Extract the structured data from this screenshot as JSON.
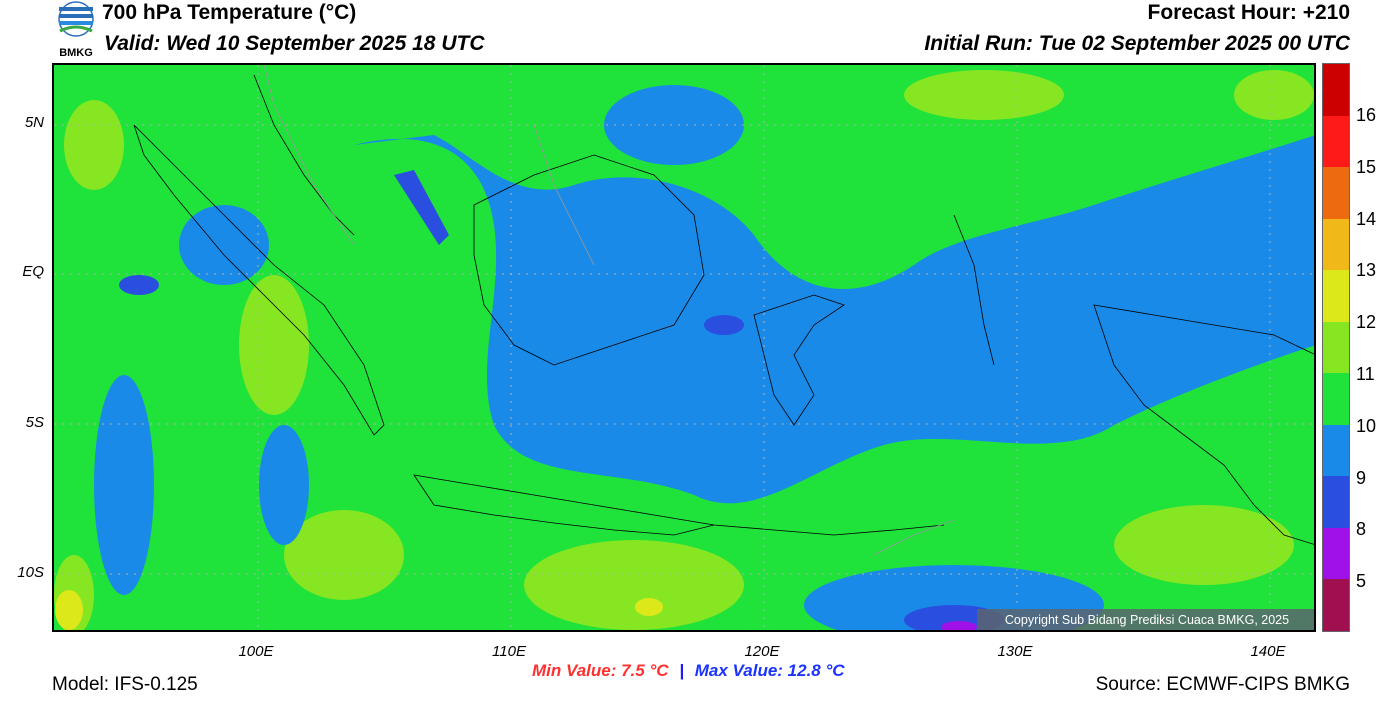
{
  "header": {
    "title": "700 hPa Temperature (°C)",
    "valid": "Valid: Wed 10 September 2025 18 UTC",
    "forecast_hour": "Forecast Hour: +210",
    "initial_run": "Initial Run: Tue 02 September 2025 00 UTC"
  },
  "logo": {
    "text": "BMKG"
  },
  "map": {
    "region": "Indonesia",
    "lat_labels": [
      "5N",
      "EQ",
      "5S",
      "10S"
    ],
    "lon_labels": [
      "100E",
      "110E",
      "120E",
      "130E",
      "140E"
    ],
    "copyright": "Copyright Sub Bidang Prediksi Cuaca BMKG, 2025"
  },
  "colorbar": {
    "labels": [
      "16",
      "15",
      "14",
      "13",
      "12",
      "11",
      "10",
      "9",
      "8",
      "5"
    ],
    "colors": [
      "#cc0000",
      "#ff1a1a",
      "#ee6a10",
      "#f0b818",
      "#dde81a",
      "#86e622",
      "#1fe23a",
      "#1a8ae8",
      "#2a4ee0",
      "#a010e8",
      "#a01050"
    ]
  },
  "stats": {
    "min": "Min Value: 7.5 °C",
    "separator": "|",
    "max": "Max Value: 12.8 °C"
  },
  "footer": {
    "model": "Model: IFS-0.125",
    "source": "Source: ECMWF-CIPS BMKG"
  }
}
